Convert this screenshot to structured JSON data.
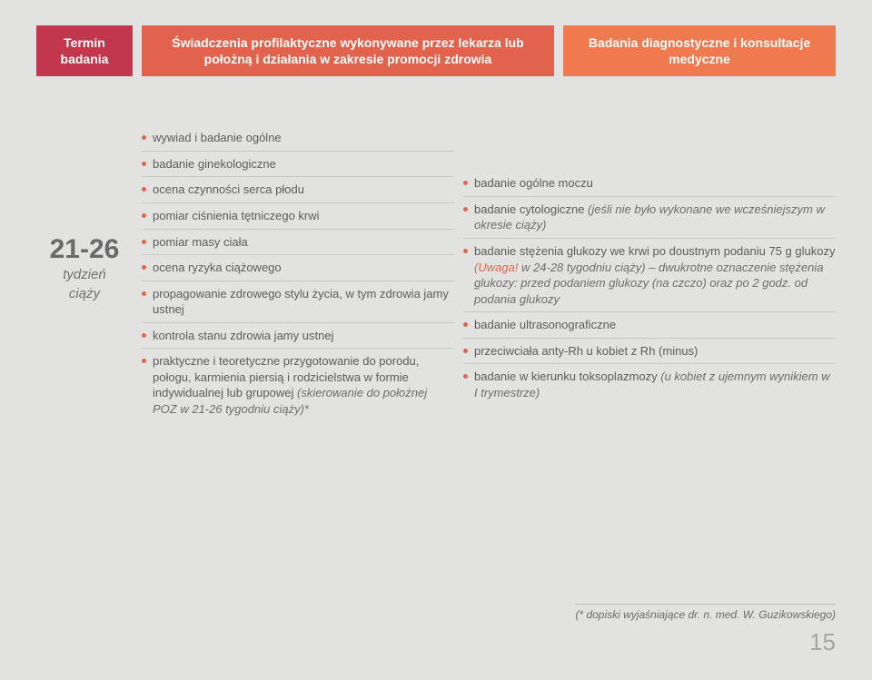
{
  "header": {
    "col1": "Termin badania",
    "col2": "Świadczenia profilaktyczne wykonywane przez lekarza lub położną i działania w zakresie promocji zdrowia",
    "col3": "Badania diagnostyczne i konsultacje medyczne"
  },
  "week": {
    "range": "21-26",
    "label1": "tydzień",
    "label2": "ciąży"
  },
  "left": [
    {
      "t": "wywiad i badanie ogólne"
    },
    {
      "t": "badanie ginekologiczne"
    },
    {
      "t": "ocena czynności serca płodu"
    },
    {
      "t": "pomiar ciśnienia tętniczego krwi"
    },
    {
      "t": "pomiar masy ciała"
    },
    {
      "t": "ocena ryzyka ciążowego"
    },
    {
      "t": "propagowanie zdrowego stylu życia, w tym zdrowia jamy ustnej"
    },
    {
      "t": "kontrola stanu zdrowia jamy ustnej"
    },
    {
      "t": "praktyczne i teoretyczne przygotowanie do porodu, połogu, karmienia piersią i rodzicielstwa w formie indywidualnej lub grupowej",
      "i": "(skierowanie do położnej POZ w 21-26 tygodniu ciąży)*"
    }
  ],
  "right": [
    {
      "t": "badanie ogólne moczu"
    },
    {
      "t": "badanie cytologiczne",
      "i": "(jeśli nie było wykonane we wcześniejszym w okresie ciąży)"
    },
    {
      "t": "badanie stężenia glukozy we krwi po doustnym podaniu 75 g glukozy",
      "warn": "(Uwaga!",
      "i": " w 24-28 tygodniu ciąży) – dwukrotne oznaczenie stężenia glukozy: przed podaniem glukozy (na czczo) oraz  po 2 godz. od podania glukozy"
    },
    {
      "t": "badanie ultrasonograficzne"
    },
    {
      "t": "przeciwciała anty-Rh u kobiet z Rh (minus)"
    },
    {
      "t": "badanie w kierunku toksoplazmozy",
      "i": "(u kobiet z ujemnym wynikiem w I trymestrze)"
    }
  ],
  "footnote": "(* dopiski wyjaśniające dr. n. med. W. Guzikowskiego)",
  "pagenum": "15",
  "colors": {
    "h1": "#c2374d",
    "h2": "#e2634d",
    "h3": "#f07a4f",
    "bullet": "#d96a4f",
    "bg": "#e2e2e0",
    "text": "#5a5a5a"
  }
}
